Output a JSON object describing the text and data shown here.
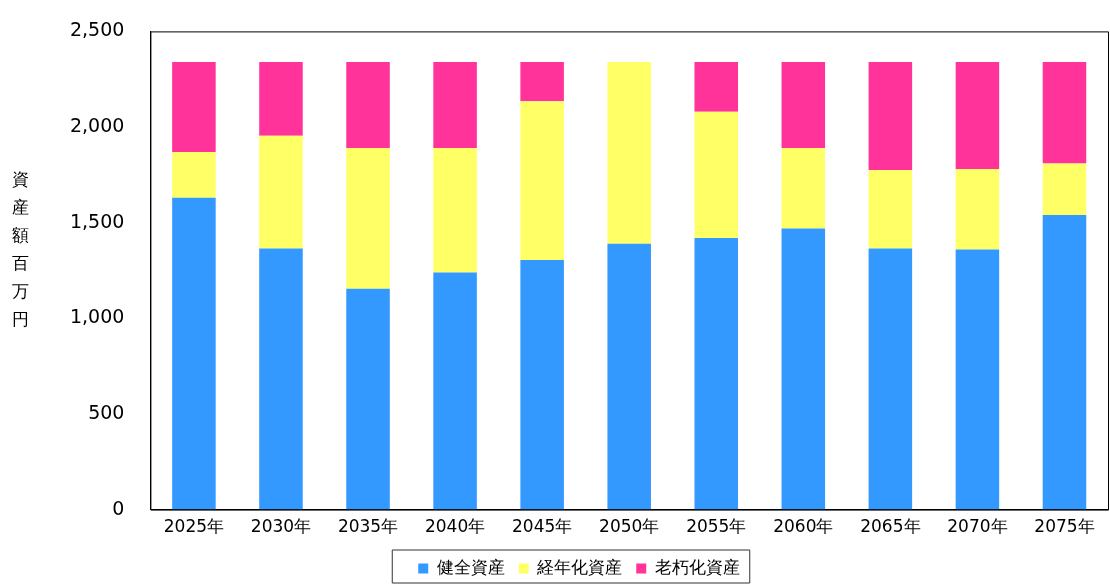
{
  "chart_data": {
    "type": "bar",
    "stacked": true,
    "ylabel": "資産額百万円",
    "categories": [
      "2025年",
      "2030年",
      "2035年",
      "2040年",
      "2045年",
      "2050年",
      "2055年",
      "2060年",
      "2065年",
      "2070年",
      "2075年"
    ],
    "series": [
      {
        "name": "健全資産",
        "color": "#3399ff",
        "values": [
          1630,
          1365,
          1155,
          1240,
          1305,
          1390,
          1420,
          1470,
          1365,
          1360,
          1540
        ]
      },
      {
        "name": "経年化資産",
        "color": "#ffff66",
        "values": [
          240,
          590,
          735,
          650,
          830,
          950,
          660,
          420,
          410,
          420,
          270
        ]
      },
      {
        "name": "老朽化資産",
        "color": "#ff3399",
        "values": [
          470,
          385,
          450,
          450,
          205,
          0,
          260,
          450,
          565,
          560,
          530
        ]
      }
    ],
    "ylim": [
      0,
      2500
    ],
    "yticks": [
      0,
      500,
      {
        "value": 1000,
        "label": "1,000"
      },
      {
        "value": 1500,
        "label": "1,500"
      },
      {
        "value": 2000,
        "label": "2,000"
      },
      {
        "value": 2500,
        "label": "2,500"
      }
    ],
    "grid": false,
    "legend": "bottom"
  }
}
